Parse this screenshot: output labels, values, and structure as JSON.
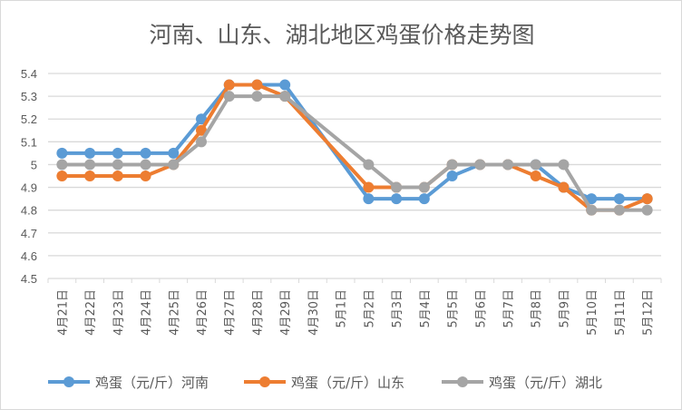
{
  "chart_data": {
    "type": "line",
    "title": "河南、山东、湖北地区鸡蛋价格走势图",
    "categories": [
      "4月21日",
      "4月22日",
      "4月23日",
      "4月24日",
      "4月25日",
      "4月26日",
      "4月27日",
      "4月28日",
      "4月29日",
      "4月30日",
      "5月1日",
      "5月2日",
      "5月3日",
      "5月4日",
      "5月5日",
      "5月6日",
      "5月7日",
      "5月8日",
      "5月9日",
      "5月10日",
      "5月11日",
      "5月12日"
    ],
    "ylim": [
      4.5,
      5.4
    ],
    "yticks": [
      "4.5",
      "4.6",
      "4.7",
      "4.8",
      "4.9",
      "5",
      "5.1",
      "5.2",
      "5.3",
      "5.4"
    ],
    "grid": true,
    "legend": "bottom",
    "series": [
      {
        "name": "鸡蛋（元/斤）河南",
        "color": "#5b9bd5",
        "values": [
          5.05,
          5.05,
          5.05,
          5.05,
          5.05,
          5.2,
          5.35,
          5.35,
          5.35,
          null,
          null,
          4.85,
          4.85,
          4.85,
          4.95,
          5.0,
          5.0,
          5.0,
          4.9,
          4.85,
          4.85,
          4.85
        ]
      },
      {
        "name": "鸡蛋（元/斤）山东",
        "color": "#ed7d31",
        "values": [
          4.95,
          4.95,
          4.95,
          4.95,
          5.0,
          5.15,
          5.35,
          5.35,
          5.3,
          null,
          null,
          4.9,
          4.9,
          4.9,
          5.0,
          5.0,
          5.0,
          4.95,
          4.9,
          4.8,
          4.8,
          4.85
        ]
      },
      {
        "name": "鸡蛋（元/斤）湖北",
        "color": "#a5a5a5",
        "values": [
          5.0,
          5.0,
          5.0,
          5.0,
          5.0,
          5.1,
          5.3,
          5.3,
          5.3,
          null,
          null,
          5.0,
          4.9,
          4.9,
          5.0,
          5.0,
          5.0,
          5.0,
          5.0,
          4.8,
          4.8,
          4.8
        ]
      }
    ]
  }
}
